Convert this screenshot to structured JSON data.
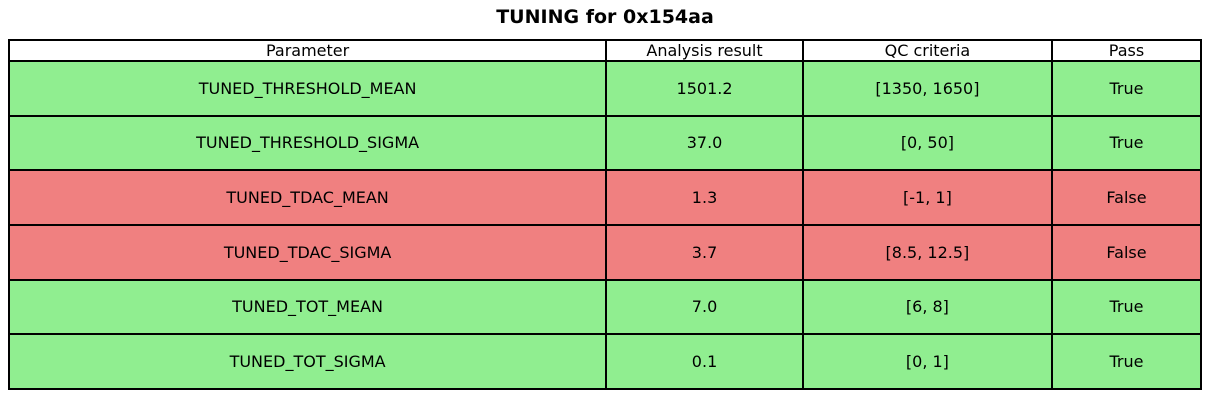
{
  "title": "TUNING for 0x154aa",
  "chart_data": {
    "type": "table",
    "title": "TUNING for 0x154aa",
    "columns": [
      "Parameter",
      "Analysis result",
      "QC criteria",
      "Pass"
    ],
    "rows": [
      {
        "parameter": "TUNED_THRESHOLD_MEAN",
        "analysis_result": "1501.2",
        "qc_criteria": "[1350, 1650]",
        "pass": "True",
        "status": "pass"
      },
      {
        "parameter": "TUNED_THRESHOLD_SIGMA",
        "analysis_result": "37.0",
        "qc_criteria": "[0, 50]",
        "pass": "True",
        "status": "pass"
      },
      {
        "parameter": "TUNED_TDAC_MEAN",
        "analysis_result": "1.3",
        "qc_criteria": "[-1, 1]",
        "pass": "False",
        "status": "fail"
      },
      {
        "parameter": "TUNED_TDAC_SIGMA",
        "analysis_result": "3.7",
        "qc_criteria": "[8.5, 12.5]",
        "pass": "False",
        "status": "fail"
      },
      {
        "parameter": "TUNED_TOT_MEAN",
        "analysis_result": "7.0",
        "qc_criteria": "[6, 8]",
        "pass": "True",
        "status": "pass"
      },
      {
        "parameter": "TUNED_TOT_SIGMA",
        "analysis_result": "0.1",
        "qc_criteria": "[0, 1]",
        "pass": "True",
        "status": "pass"
      }
    ],
    "colors": {
      "pass_row": "#90ee90",
      "fail_row": "#f08080",
      "header_bg": "#ffffff",
      "border": "#000000",
      "text": "#000000"
    },
    "layout": {
      "legend": "none",
      "grid": "table-borders",
      "title_position": "top-center"
    }
  }
}
